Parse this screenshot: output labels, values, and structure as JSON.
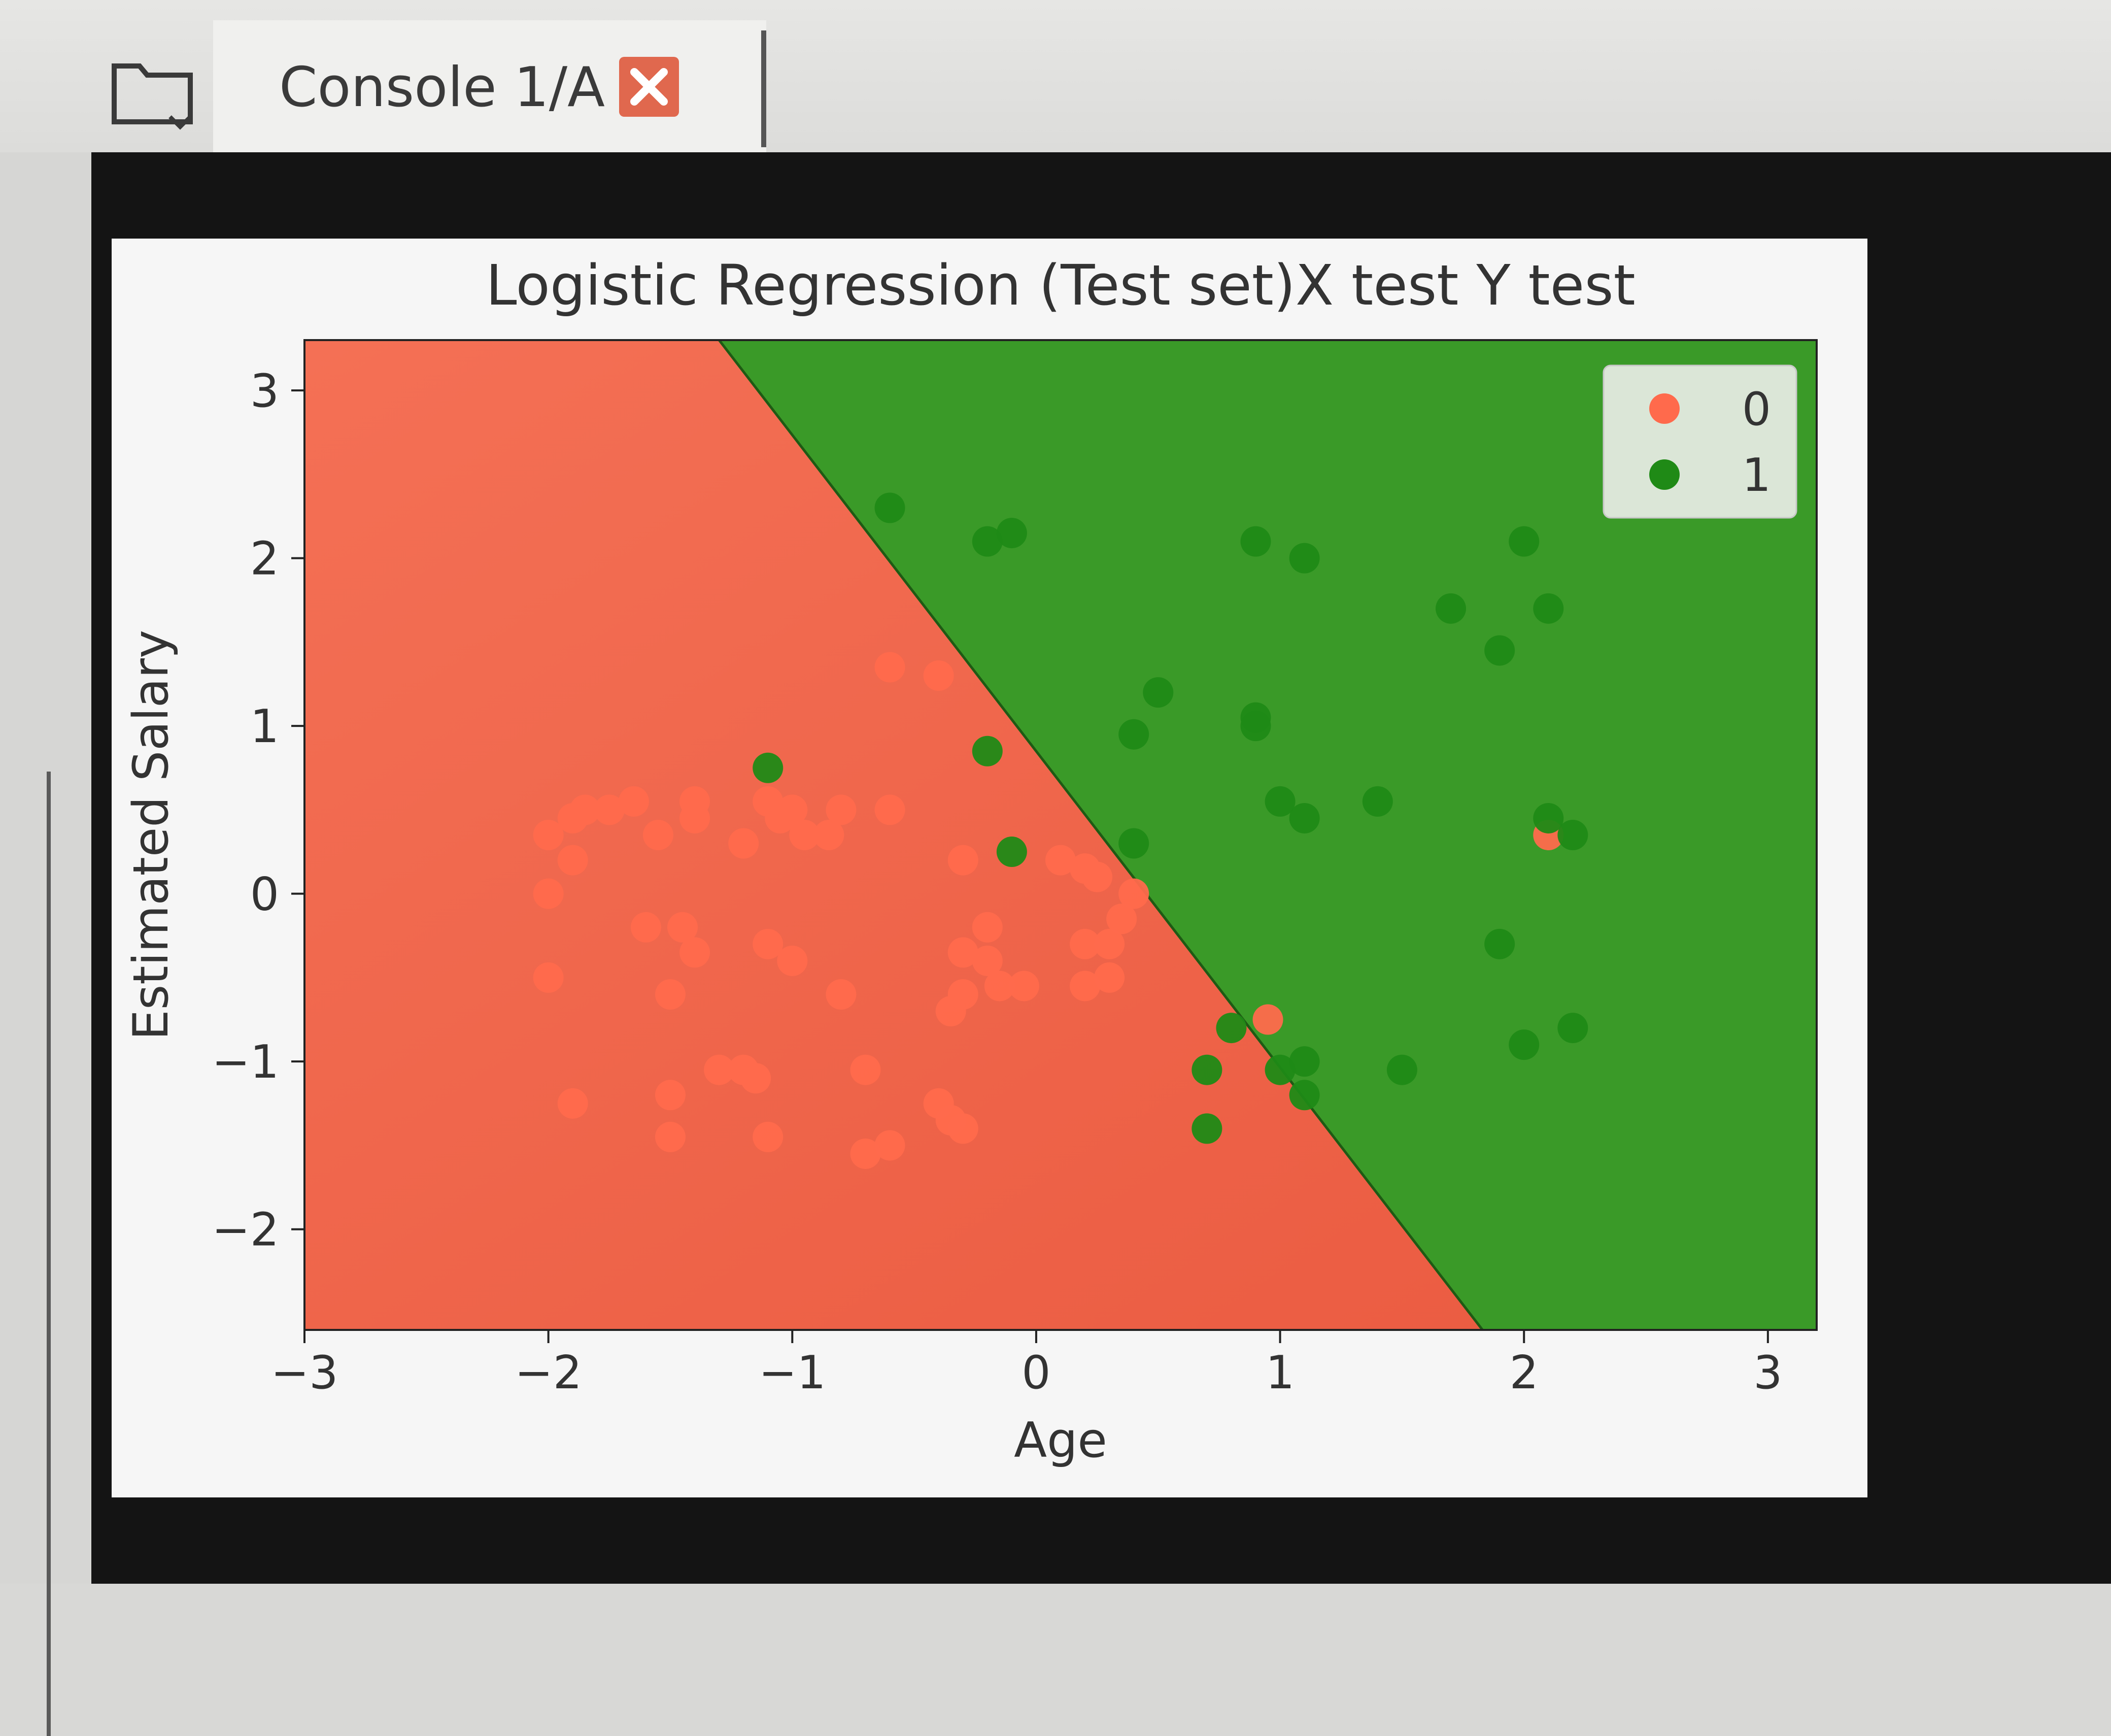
{
  "tabs": [
    {
      "label": "Console 1/A",
      "active": true
    }
  ],
  "colors": {
    "class_0": "#ff6347",
    "class_1": "#2e9e1e",
    "region_0": "#f4664a",
    "region_1": "#3a9a28",
    "close_button": "#e0684e"
  },
  "chart_data": {
    "type": "scatter",
    "title": "Logistic Regression (Test set)X test Y test",
    "xlabel": "Age",
    "ylabel": "Estimated Salary",
    "xlim": [
      -3,
      3.2
    ],
    "ylim": [
      -2.6,
      3.3
    ],
    "xticks": [
      -3,
      -2,
      -1,
      0,
      1,
      2,
      3
    ],
    "yticks": [
      -2,
      -1,
      0,
      1,
      2,
      3
    ],
    "xtick_labels": [
      "−3",
      "−2",
      "−1",
      "0",
      "1",
      "2",
      "3"
    ],
    "ytick_labels": [
      "−2",
      "−1",
      "0",
      "1",
      "2",
      "3"
    ],
    "legend": {
      "position": "upper-right",
      "entries": [
        "0",
        "1"
      ]
    },
    "decision_boundary": {
      "points": [
        [
          -1.3,
          3.3
        ],
        [
          1.83,
          -2.6
        ]
      ]
    },
    "series": [
      {
        "name": "0",
        "color": "#ff6347",
        "points": [
          [
            -2.0,
            0.35
          ],
          [
            -1.9,
            0.45
          ],
          [
            -1.85,
            0.5
          ],
          [
            -1.75,
            0.5
          ],
          [
            -1.65,
            0.55
          ],
          [
            -1.9,
            0.2
          ],
          [
            -1.55,
            0.35
          ],
          [
            -1.4,
            0.55
          ],
          [
            -1.4,
            0.45
          ],
          [
            -1.2,
            0.3
          ],
          [
            -1.1,
            0.55
          ],
          [
            -1.05,
            0.45
          ],
          [
            -1.0,
            0.5
          ],
          [
            -0.95,
            0.35
          ],
          [
            -0.85,
            0.35
          ],
          [
            -0.8,
            0.5
          ],
          [
            -0.6,
            0.5
          ],
          [
            -2.0,
            0.0
          ],
          [
            -2.0,
            -0.5
          ],
          [
            -1.6,
            -0.2
          ],
          [
            -1.45,
            -0.2
          ],
          [
            -1.4,
            -0.35
          ],
          [
            -1.5,
            -0.6
          ],
          [
            -1.1,
            -0.3
          ],
          [
            -1.0,
            -0.4
          ],
          [
            -0.8,
            -0.6
          ],
          [
            -1.9,
            -1.25
          ],
          [
            -1.5,
            -1.2
          ],
          [
            -1.5,
            -1.45
          ],
          [
            -1.3,
            -1.05
          ],
          [
            -1.2,
            -1.05
          ],
          [
            -1.15,
            -1.1
          ],
          [
            -1.1,
            -1.45
          ],
          [
            -0.7,
            -1.05
          ],
          [
            -0.7,
            -1.55
          ],
          [
            -0.6,
            -1.5
          ],
          [
            -0.4,
            -1.25
          ],
          [
            -0.35,
            -1.35
          ],
          [
            -0.3,
            -1.4
          ],
          [
            -0.6,
            1.35
          ],
          [
            -0.4,
            1.3
          ],
          [
            -0.3,
            0.2
          ],
          [
            -0.3,
            -0.35
          ],
          [
            -0.35,
            -0.7
          ],
          [
            -0.3,
            -0.6
          ],
          [
            -0.2,
            -0.2
          ],
          [
            -0.2,
            -0.4
          ],
          [
            -0.15,
            -0.55
          ],
          [
            -0.05,
            -0.55
          ],
          [
            0.1,
            0.2
          ],
          [
            0.2,
            0.15
          ],
          [
            0.25,
            0.1
          ],
          [
            0.2,
            -0.3
          ],
          [
            0.3,
            -0.3
          ],
          [
            0.35,
            -0.15
          ],
          [
            0.2,
            -0.55
          ],
          [
            0.3,
            -0.5
          ],
          [
            0.4,
            0.0
          ],
          [
            0.95,
            -0.75
          ],
          [
            2.1,
            0.35
          ]
        ]
      },
      {
        "name": "1",
        "color": "#2e9e1e",
        "points": [
          [
            -0.6,
            2.3
          ],
          [
            -0.2,
            2.1
          ],
          [
            -0.1,
            2.15
          ],
          [
            0.9,
            2.1
          ],
          [
            1.1,
            2.0
          ],
          [
            2.0,
            2.1
          ],
          [
            1.7,
            1.7
          ],
          [
            2.1,
            1.7
          ],
          [
            1.9,
            1.45
          ],
          [
            0.5,
            1.2
          ],
          [
            0.4,
            0.95
          ],
          [
            0.9,
            1.0
          ],
          [
            0.9,
            1.05
          ],
          [
            -1.1,
            0.75
          ],
          [
            -0.2,
            0.85
          ],
          [
            1.0,
            0.55
          ],
          [
            1.1,
            0.45
          ],
          [
            1.4,
            0.55
          ],
          [
            2.1,
            0.45
          ],
          [
            2.2,
            0.35
          ],
          [
            -0.1,
            0.25
          ],
          [
            0.4,
            0.3
          ],
          [
            1.9,
            -0.3
          ],
          [
            0.8,
            -0.8
          ],
          [
            2.2,
            -0.8
          ],
          [
            2.0,
            -0.9
          ],
          [
            0.7,
            -1.05
          ],
          [
            1.0,
            -1.05
          ],
          [
            1.1,
            -1.0
          ],
          [
            1.1,
            -1.2
          ],
          [
            1.5,
            -1.05
          ],
          [
            0.7,
            -1.4
          ]
        ]
      }
    ]
  }
}
